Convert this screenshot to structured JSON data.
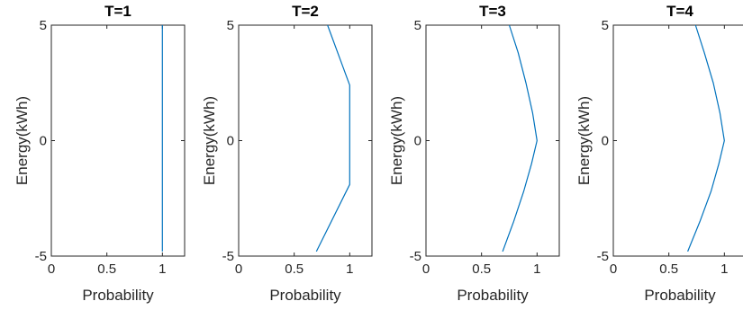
{
  "chart_data": [
    {
      "type": "line",
      "title": "T=1",
      "xlabel": "Probability",
      "ylabel": "Energy(kWh)",
      "xlim": [
        0,
        1.2
      ],
      "ylim": [
        -5,
        5
      ],
      "xticks": [
        "0",
        "0.5",
        "1"
      ],
      "yticks": [
        "-5",
        "0",
        "5"
      ],
      "color": "#0072BD",
      "series": [
        {
          "x": [
            1,
            1
          ],
          "y": [
            -4.8,
            5
          ]
        }
      ]
    },
    {
      "type": "line",
      "title": "T=2",
      "xlabel": "Probability",
      "ylabel": "Energy(kWh)",
      "xlim": [
        0,
        1.2
      ],
      "ylim": [
        -5,
        5
      ],
      "xticks": [
        "0",
        "0.5",
        "1"
      ],
      "yticks": [
        "-5",
        "0",
        "5"
      ],
      "color": "#0072BD",
      "series": [
        {
          "x": [
            0.7,
            1.0,
            1.0,
            0.8
          ],
          "y": [
            -4.8,
            -1.9,
            2.4,
            5
          ]
        }
      ]
    },
    {
      "type": "line",
      "title": "T=3",
      "xlabel": "Probability",
      "ylabel": "Energy(kWh)",
      "xlim": [
        0,
        1.2
      ],
      "ylim": [
        -5,
        5
      ],
      "xticks": [
        "0",
        "0.5",
        "1"
      ],
      "yticks": [
        "-5",
        "0",
        "5"
      ],
      "color": "#0072BD",
      "series": [
        {
          "x": [
            0.69,
            0.79,
            0.88,
            0.95,
            1.0,
            0.96,
            0.9,
            0.83,
            0.75
          ],
          "y": [
            -4.8,
            -3.5,
            -2.2,
            -1.0,
            0,
            1.2,
            2.5,
            3.8,
            5
          ]
        }
      ]
    },
    {
      "type": "line",
      "title": "T=4",
      "xlabel": "Probability",
      "ylabel": "Energy(kWh)",
      "xlim": [
        0,
        1.2
      ],
      "ylim": [
        -5,
        5
      ],
      "xticks": [
        "0",
        "0.5",
        "1"
      ],
      "yticks": [
        "-5",
        "0",
        "5"
      ],
      "color": "#0072BD",
      "series": [
        {
          "x": [
            0.67,
            0.78,
            0.88,
            0.95,
            1.0,
            0.96,
            0.9,
            0.82,
            0.74
          ],
          "y": [
            -4.8,
            -3.5,
            -2.2,
            -1.0,
            0,
            1.2,
            2.5,
            3.8,
            5
          ]
        }
      ]
    }
  ]
}
